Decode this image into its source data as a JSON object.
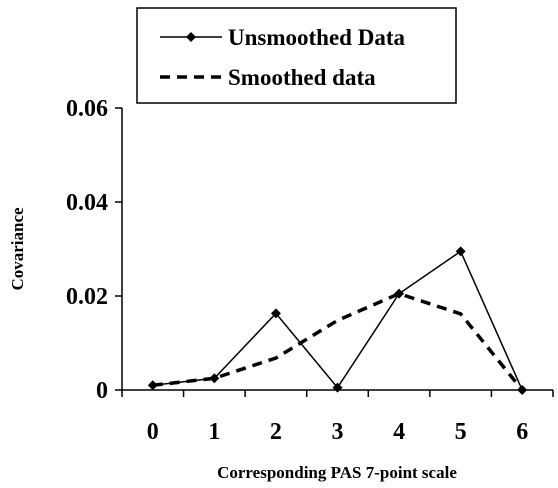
{
  "chart_data": {
    "type": "line",
    "xlabel": "Corresponding PAS 7-point scale",
    "ylabel": "Covariance",
    "x": [
      0,
      1,
      2,
      3,
      4,
      5,
      6
    ],
    "xlim": [
      -0.5,
      6.5
    ],
    "ylim": [
      0,
      0.06
    ],
    "yticks": [
      0,
      0.02,
      0.04,
      0.06
    ],
    "ytick_labels": [
      "0",
      "0.02",
      "0.04",
      "0.06"
    ],
    "xtick_labels": [
      "0",
      "1",
      "2",
      "3",
      "4",
      "5",
      "6"
    ],
    "grid": false,
    "legend_position": "top",
    "series": [
      {
        "name": "Unsmoothed Data",
        "style": "solid line with diamond markers",
        "color": "#000000",
        "values": [
          0.001,
          0.0025,
          0.0163,
          0.0005,
          0.0205,
          0.0295,
          0.0
        ]
      },
      {
        "name": "Smoothed data",
        "style": "dashed line",
        "color": "#000000",
        "values": [
          0.001,
          0.0025,
          0.0068,
          0.0148,
          0.0205,
          0.0162,
          0.0
        ]
      }
    ]
  }
}
